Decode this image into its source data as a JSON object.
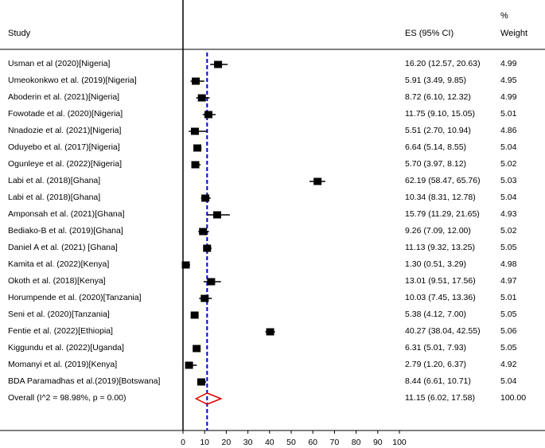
{
  "headers": {
    "study": "Study",
    "es": "ES (95% CI)",
    "weight_pct": "%",
    "weight": "Weight"
  },
  "chart_data": {
    "type": "forest",
    "xlim": [
      0,
      100
    ],
    "x_ticks": [
      0,
      10,
      20,
      30,
      40,
      50,
      60,
      70,
      80,
      90,
      100
    ],
    "reference_line": 11.15,
    "studies": [
      {
        "label": "Usman et al (2020)[Nigeria]",
        "es": 16.2,
        "lo": 12.57,
        "hi": 20.63,
        "ci_text": "16.20 (12.57, 20.63)",
        "weight": "4.99"
      },
      {
        "label": "Umeokonkwo et al. (2019)[Nigeria]",
        "es": 5.91,
        "lo": 3.49,
        "hi": 9.85,
        "ci_text": "5.91 (3.49, 9.85)",
        "weight": "4.95"
      },
      {
        "label": "Aboderin et al. (2021)[Nigeria]",
        "es": 8.72,
        "lo": 6.1,
        "hi": 12.32,
        "ci_text": "8.72 (6.10, 12.32)",
        "weight": "4.99"
      },
      {
        "label": "Fowotade et al. (2020)[Nigeria]",
        "es": 11.75,
        "lo": 9.1,
        "hi": 15.05,
        "ci_text": "11.75 (9.10, 15.05)",
        "weight": "5.01"
      },
      {
        "label": "Nnadozie et al. (2021)[Nigeria]",
        "es": 5.51,
        "lo": 2.7,
        "hi": 10.94,
        "ci_text": "5.51 (2.70, 10.94)",
        "weight": "4.86"
      },
      {
        "label": "Oduyebo et al. (2017)[Nigeria]",
        "es": 6.64,
        "lo": 5.14,
        "hi": 8.55,
        "ci_text": "6.64 (5.14, 8.55)",
        "weight": "5.04"
      },
      {
        "label": "Ogunleye et al. (2022)[Nigeria]",
        "es": 5.7,
        "lo": 3.97,
        "hi": 8.12,
        "ci_text": "5.70 (3.97, 8.12)",
        "weight": "5.02"
      },
      {
        "label": "Labi et al. (2018)[Ghana]",
        "es": 62.19,
        "lo": 58.47,
        "hi": 65.76,
        "ci_text": "62.19 (58.47, 65.76)",
        "weight": "5.03"
      },
      {
        "label": "Labi et al. (2018)[Ghana]",
        "es": 10.34,
        "lo": 8.31,
        "hi": 12.78,
        "ci_text": "10.34 (8.31, 12.78)",
        "weight": "5.04"
      },
      {
        "label": "Amponsah et al. (2021)[Ghana]",
        "es": 15.79,
        "lo": 11.29,
        "hi": 21.65,
        "ci_text": "15.79 (11.29, 21.65)",
        "weight": "4.93"
      },
      {
        "label": "Bediako-B et al. (2019)[Ghana]",
        "es": 9.26,
        "lo": 7.09,
        "hi": 12.0,
        "ci_text": "9.26 (7.09, 12.00)",
        "weight": "5.02"
      },
      {
        "label": "Daniel A et al. (2021) [Ghana]",
        "es": 11.13,
        "lo": 9.32,
        "hi": 13.25,
        "ci_text": "11.13 (9.32, 13.25)",
        "weight": "5.05"
      },
      {
        "label": "Kamita et al. (2022)[Kenya]",
        "es": 1.3,
        "lo": 0.51,
        "hi": 3.29,
        "ci_text": "1.30 (0.51, 3.29)",
        "weight": "4.98"
      },
      {
        "label": "Okoth et al. (2018)[Kenya]",
        "es": 13.01,
        "lo": 9.51,
        "hi": 17.56,
        "ci_text": "13.01 (9.51, 17.56)",
        "weight": "4.97"
      },
      {
        "label": "Horumpende et al. (2020)[Tanzania]",
        "es": 10.03,
        "lo": 7.45,
        "hi": 13.36,
        "ci_text": "10.03 (7.45, 13.36)",
        "weight": "5.01"
      },
      {
        "label": "Seni et al. (2020)[Tanzania]",
        "es": 5.38,
        "lo": 4.12,
        "hi": 7.0,
        "ci_text": "5.38 (4.12, 7.00)",
        "weight": "5.05"
      },
      {
        "label": "Fentie et al. (2022)[Ethiopia]",
        "es": 40.27,
        "lo": 38.04,
        "hi": 42.55,
        "ci_text": "40.27 (38.04, 42.55)",
        "weight": "5.06"
      },
      {
        "label": "Kiggundu et al. (2022)[Uganda]",
        "es": 6.31,
        "lo": 5.01,
        "hi": 7.93,
        "ci_text": "6.31 (5.01, 7.93)",
        "weight": "5.05"
      },
      {
        "label": "Momanyi et al. (2019)[Kenya]",
        "es": 2.79,
        "lo": 1.2,
        "hi": 6.37,
        "ci_text": "2.79 (1.20, 6.37)",
        "weight": "4.92"
      },
      {
        "label": "BDA Paramadhas et al.(2019)[Botswana]",
        "es": 8.44,
        "lo": 6.61,
        "hi": 10.71,
        "ci_text": "8.44 (6.61, 10.71)",
        "weight": "5.04"
      }
    ],
    "overall": {
      "label": "Overall  (I^2 = 98.98%, p = 0.00)",
      "es": 11.15,
      "lo": 6.02,
      "hi": 17.58,
      "ci_text": "11.15 (6.02, 17.58)",
      "weight": "100.00"
    },
    "colors": {
      "marker": "#000000",
      "reference_line": "#0000cc",
      "diamond": "#dd0000"
    }
  }
}
